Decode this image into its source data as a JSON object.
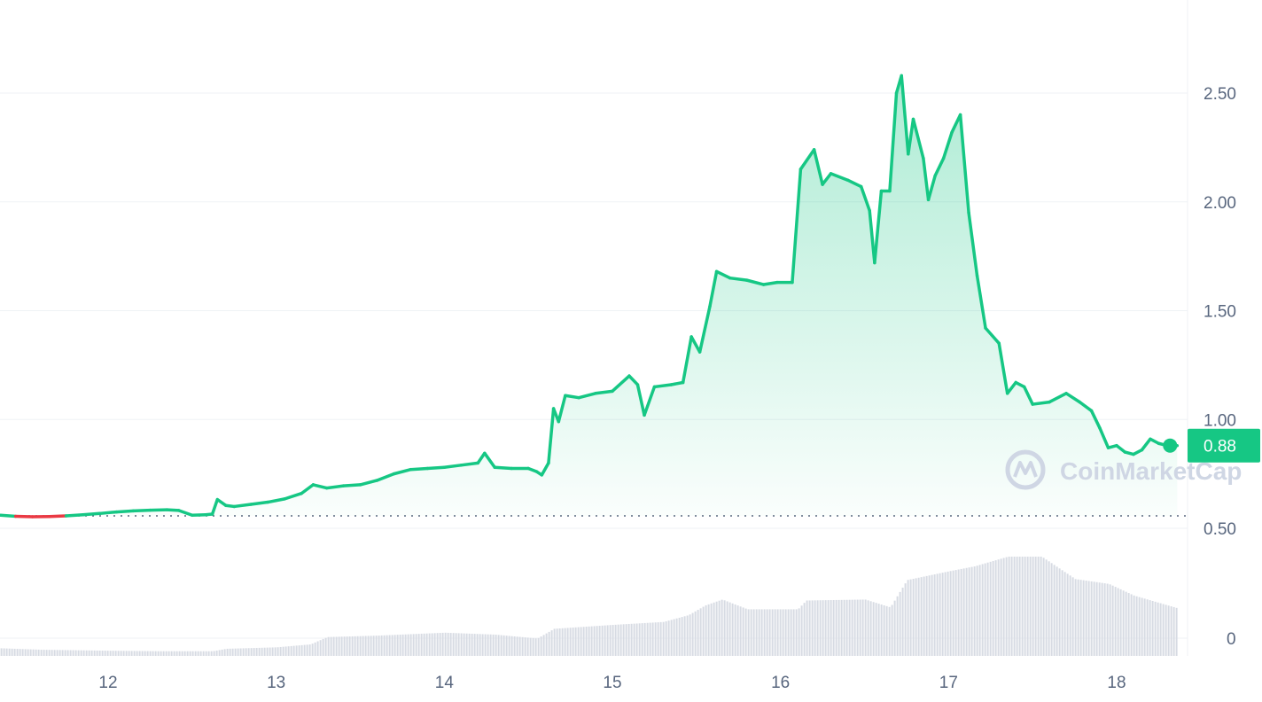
{
  "chart_data": {
    "type": "area",
    "x_unit": "day of month",
    "x_ticks": [
      12,
      13,
      14,
      15,
      16,
      17,
      18
    ],
    "x_tick_labels": [
      "12",
      "13",
      "14",
      "15",
      "16",
      "17",
      "18"
    ],
    "y_ticks": [
      0.5,
      1.0,
      1.5,
      2.0,
      2.5
    ],
    "y_tick_labels": [
      "0.50",
      "1.00",
      "1.50",
      "2.00",
      "2.50"
    ],
    "ylim": [
      0.5,
      2.85
    ],
    "xlim": [
      11.36,
      18.36
    ],
    "baseline_price": 0.557,
    "current_price": 0.88,
    "current_price_label": "0.88",
    "grid": true,
    "colors": {
      "up": "#16c784",
      "down": "#ea3943",
      "badge": "#16c784",
      "volume": "#d7dbe3",
      "grid": "#eff2f5"
    },
    "series": [
      {
        "values": [
          [
            11.36,
            0.56
          ],
          [
            11.45,
            0.555
          ],
          [
            11.55,
            0.553
          ],
          [
            11.65,
            0.554
          ],
          [
            11.75,
            0.557
          ],
          [
            11.85,
            0.562
          ],
          [
            11.95,
            0.568
          ],
          [
            12.05,
            0.575
          ],
          [
            12.15,
            0.58
          ],
          [
            12.25,
            0.583
          ],
          [
            12.35,
            0.585
          ],
          [
            12.42,
            0.582
          ],
          [
            12.5,
            0.56
          ],
          [
            12.58,
            0.562
          ],
          [
            12.62,
            0.565
          ],
          [
            12.65,
            0.632
          ],
          [
            12.7,
            0.605
          ],
          [
            12.75,
            0.6
          ],
          [
            12.85,
            0.61
          ],
          [
            12.95,
            0.62
          ],
          [
            13.05,
            0.635
          ],
          [
            13.15,
            0.66
          ],
          [
            13.22,
            0.7
          ],
          [
            13.3,
            0.685
          ],
          [
            13.4,
            0.695
          ],
          [
            13.5,
            0.7
          ],
          [
            13.6,
            0.72
          ],
          [
            13.7,
            0.75
          ],
          [
            13.8,
            0.77
          ],
          [
            13.9,
            0.775
          ],
          [
            14.0,
            0.78
          ],
          [
            14.1,
            0.79
          ],
          [
            14.2,
            0.8
          ],
          [
            14.24,
            0.845
          ],
          [
            14.3,
            0.78
          ],
          [
            14.4,
            0.775
          ],
          [
            14.5,
            0.775
          ],
          [
            14.55,
            0.76
          ],
          [
            14.58,
            0.745
          ],
          [
            14.62,
            0.8
          ],
          [
            14.65,
            1.05
          ],
          [
            14.68,
            0.99
          ],
          [
            14.72,
            1.11
          ],
          [
            14.8,
            1.1
          ],
          [
            14.9,
            1.12
          ],
          [
            15.0,
            1.13
          ],
          [
            15.1,
            1.2
          ],
          [
            15.15,
            1.16
          ],
          [
            15.19,
            1.02
          ],
          [
            15.25,
            1.15
          ],
          [
            15.35,
            1.16
          ],
          [
            15.42,
            1.17
          ],
          [
            15.47,
            1.38
          ],
          [
            15.52,
            1.31
          ],
          [
            15.58,
            1.52
          ],
          [
            15.62,
            1.68
          ],
          [
            15.7,
            1.65
          ],
          [
            15.8,
            1.64
          ],
          [
            15.9,
            1.62
          ],
          [
            15.98,
            1.63
          ],
          [
            16.07,
            1.63
          ],
          [
            16.12,
            2.15
          ],
          [
            16.2,
            2.24
          ],
          [
            16.25,
            2.08
          ],
          [
            16.3,
            2.13
          ],
          [
            16.4,
            2.1
          ],
          [
            16.48,
            2.07
          ],
          [
            16.53,
            1.96
          ],
          [
            16.56,
            1.72
          ],
          [
            16.6,
            2.05
          ],
          [
            16.65,
            2.05
          ],
          [
            16.69,
            2.5
          ],
          [
            16.72,
            2.58
          ],
          [
            16.76,
            2.22
          ],
          [
            16.79,
            2.38
          ],
          [
            16.85,
            2.2
          ],
          [
            16.88,
            2.01
          ],
          [
            16.92,
            2.12
          ],
          [
            16.97,
            2.2
          ],
          [
            17.02,
            2.32
          ],
          [
            17.07,
            2.4
          ],
          [
            17.12,
            1.95
          ],
          [
            17.17,
            1.66
          ],
          [
            17.22,
            1.42
          ],
          [
            17.3,
            1.35
          ],
          [
            17.35,
            1.12
          ],
          [
            17.4,
            1.17
          ],
          [
            17.45,
            1.15
          ],
          [
            17.5,
            1.07
          ],
          [
            17.6,
            1.08
          ],
          [
            17.7,
            1.12
          ],
          [
            17.78,
            1.08
          ],
          [
            17.85,
            1.04
          ],
          [
            17.9,
            0.96
          ],
          [
            17.95,
            0.87
          ],
          [
            18.0,
            0.88
          ],
          [
            18.05,
            0.85
          ],
          [
            18.1,
            0.84
          ],
          [
            18.15,
            0.86
          ],
          [
            18.2,
            0.91
          ],
          [
            18.25,
            0.89
          ],
          [
            18.3,
            0.88
          ],
          [
            18.36,
            0.88
          ]
        ]
      }
    ],
    "volume": {
      "values": [
        [
          11.36,
          0.06
        ],
        [
          11.6,
          0.045
        ],
        [
          12.0,
          0.035
        ],
        [
          12.3,
          0.03
        ],
        [
          12.62,
          0.03
        ],
        [
          12.7,
          0.055
        ],
        [
          13.0,
          0.07
        ],
        [
          13.2,
          0.1
        ],
        [
          13.3,
          0.175
        ],
        [
          13.6,
          0.19
        ],
        [
          14.0,
          0.22
        ],
        [
          14.3,
          0.2
        ],
        [
          14.55,
          0.16
        ],
        [
          14.65,
          0.26
        ],
        [
          15.0,
          0.3
        ],
        [
          15.3,
          0.33
        ],
        [
          15.45,
          0.4
        ],
        [
          15.55,
          0.5
        ],
        [
          15.65,
          0.56
        ],
        [
          15.8,
          0.46
        ],
        [
          16.1,
          0.46
        ],
        [
          16.15,
          0.55
        ],
        [
          16.5,
          0.56
        ],
        [
          16.65,
          0.48
        ],
        [
          16.75,
          0.76
        ],
        [
          17.0,
          0.85
        ],
        [
          17.15,
          0.9
        ],
        [
          17.35,
          1.0
        ],
        [
          17.55,
          1.0
        ],
        [
          17.75,
          0.77
        ],
        [
          17.95,
          0.72
        ],
        [
          18.1,
          0.6
        ],
        [
          18.36,
          0.47
        ]
      ]
    },
    "volume_axis_label": "0"
  },
  "watermark": {
    "text": "CoinMarketCap",
    "icon": "coinmarketcap-logo-icon"
  }
}
